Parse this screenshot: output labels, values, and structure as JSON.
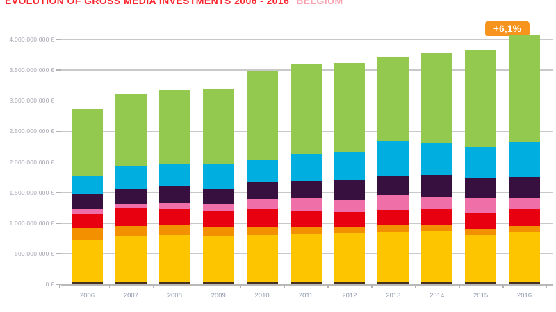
{
  "title": {
    "main": "EVOLUTION OF GROSS MEDIA INVESTMENTS 2006 - 2016",
    "region": "BELGIUM"
  },
  "badge": {
    "label": "+6,1%"
  },
  "colors": {
    "title_main": "#f9242c",
    "title_region": "#f9a3b0",
    "badge_bg": "#f7941d",
    "background": "#ffffff",
    "gridline": "#c9c9c9",
    "axis_label": "#a5a5b1",
    "year_label": "#8d97ac"
  },
  "chart_data": {
    "type": "bar",
    "stacked": true,
    "title": "EVOLUTION OF GROSS MEDIA INVESTMENTS 2006 - 2016 BELGIUM",
    "annotation": "+6,1% (above 2016 bar)",
    "values_unit": "million EUR (estimated from axis)",
    "categories": [
      "2006",
      "2007",
      "2008",
      "2009",
      "2010",
      "2011",
      "2012",
      "2013",
      "2014",
      "2015",
      "2016"
    ],
    "series": [
      {
        "name": "dark-base",
        "color": "#47311f",
        "values": [
          30,
          30,
          30,
          30,
          30,
          30,
          30,
          30,
          30,
          30,
          30
        ]
      },
      {
        "name": "yellow",
        "color": "#fdc500",
        "values": [
          700,
          760,
          770,
          760,
          780,
          795,
          805,
          830,
          840,
          780,
          830
        ]
      },
      {
        "name": "orange",
        "color": "#f39000",
        "values": [
          190,
          160,
          160,
          140,
          125,
          115,
          105,
          115,
          90,
          95,
          90
        ]
      },
      {
        "name": "red",
        "color": "#e80011",
        "values": [
          230,
          300,
          265,
          275,
          300,
          260,
          240,
          240,
          275,
          265,
          285
        ]
      },
      {
        "name": "pink",
        "color": "#ef6fa8",
        "values": [
          70,
          60,
          105,
          115,
          160,
          205,
          205,
          250,
          195,
          230,
          185
        ]
      },
      {
        "name": "dark-purple",
        "color": "#37103f",
        "values": [
          250,
          250,
          275,
          240,
          285,
          285,
          320,
          300,
          345,
          330,
          330
        ]
      },
      {
        "name": "cyan",
        "color": "#00aee0",
        "values": [
          300,
          380,
          355,
          410,
          345,
          435,
          455,
          570,
          535,
          515,
          570
        ]
      },
      {
        "name": "green",
        "color": "#92c94e",
        "values": [
          1100,
          1160,
          1210,
          1210,
          1455,
          1475,
          1455,
          1385,
          1465,
          1585,
          1745
        ]
      }
    ],
    "totals": [
      2870,
      3100,
      3170,
      3180,
      3480,
      3600,
      3615,
      3720,
      3775,
      3830,
      4065
    ],
    "y_axis": {
      "min": 0,
      "max": 4000000000,
      "step": 500000000,
      "tick_labels": [
        "0 €",
        "500.000.000 €",
        "1.000.000.000 €",
        "1.500.000.000 €",
        "2.000.000.000 €",
        "2.500.000.000 €",
        "3.000.000.000 €",
        "3.500.000.000 €",
        "4.000.000.000 €"
      ]
    },
    "grid": true,
    "legend": "none visible"
  }
}
